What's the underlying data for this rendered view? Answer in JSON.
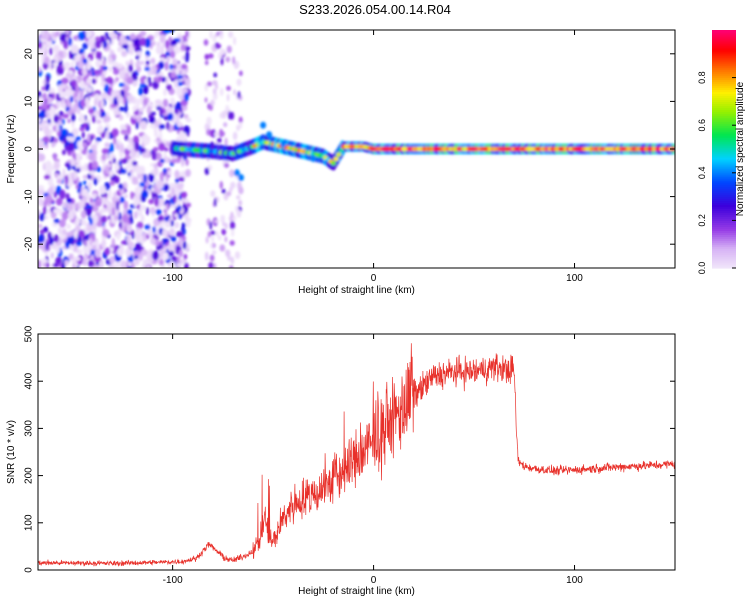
{
  "title": "S233.2026.054.00.14.R04",
  "chart_data": [
    {
      "type": "heatmap",
      "name": "spectrogram",
      "xlabel": "Height of straight line (km)",
      "ylabel": "Frequency (Hz)",
      "xlim": [
        -167,
        150
      ],
      "ylim": [
        -25,
        25
      ],
      "xticks": [
        -100,
        0,
        100
      ],
      "yticks": [
        -20,
        -10,
        0,
        10,
        20
      ],
      "colorbar": {
        "label": "Normalized spectral amplitude",
        "range": [
          0,
          1
        ],
        "ticks": [
          0.0,
          0.2,
          0.4,
          0.6,
          0.8
        ]
      },
      "ridge_frequency": [
        [
          -95,
          0.0
        ],
        [
          -80,
          -0.5
        ],
        [
          -70,
          -1.0
        ],
        [
          -60,
          0.5
        ],
        [
          -55,
          1.5
        ],
        [
          -45,
          0.5
        ],
        [
          -35,
          -0.5
        ],
        [
          -25,
          -1.5
        ],
        [
          -20,
          -3.0
        ],
        [
          -15,
          0.5
        ],
        [
          -5,
          0.5
        ],
        [
          0,
          0.0
        ],
        [
          150,
          0.0
        ]
      ]
    },
    {
      "type": "line",
      "name": "snr",
      "xlabel": "Height of straight line (km)",
      "ylabel": "SNR (10 * v/v)",
      "xlim": [
        -167,
        150
      ],
      "ylim": [
        0,
        500
      ],
      "xticks": [
        -100,
        0,
        100
      ],
      "yticks": [
        0,
        100,
        200,
        300,
        400,
        500
      ],
      "color": "#e8302a",
      "series": [
        {
          "name": "SNR",
          "x": [
            -167,
            -150,
            -130,
            -110,
            -95,
            -88,
            -82,
            -78,
            -74,
            -70,
            -64,
            -60,
            -57,
            -54,
            -52,
            -50,
            -45,
            -40,
            -30,
            -20,
            -10,
            0,
            10,
            20,
            30,
            40,
            50,
            60,
            66,
            70,
            71,
            72,
            75,
            80,
            90,
            100,
            110,
            120,
            130,
            140,
            150
          ],
          "y": [
            15,
            15,
            14,
            16,
            18,
            25,
            55,
            40,
            25,
            20,
            30,
            40,
            60,
            110,
            70,
            60,
            110,
            140,
            160,
            190,
            230,
            270,
            320,
            370,
            410,
            420,
            420,
            430,
            425,
            425,
            300,
            230,
            220,
            215,
            210,
            212,
            215,
            218,
            220,
            222,
            225
          ]
        }
      ]
    }
  ]
}
